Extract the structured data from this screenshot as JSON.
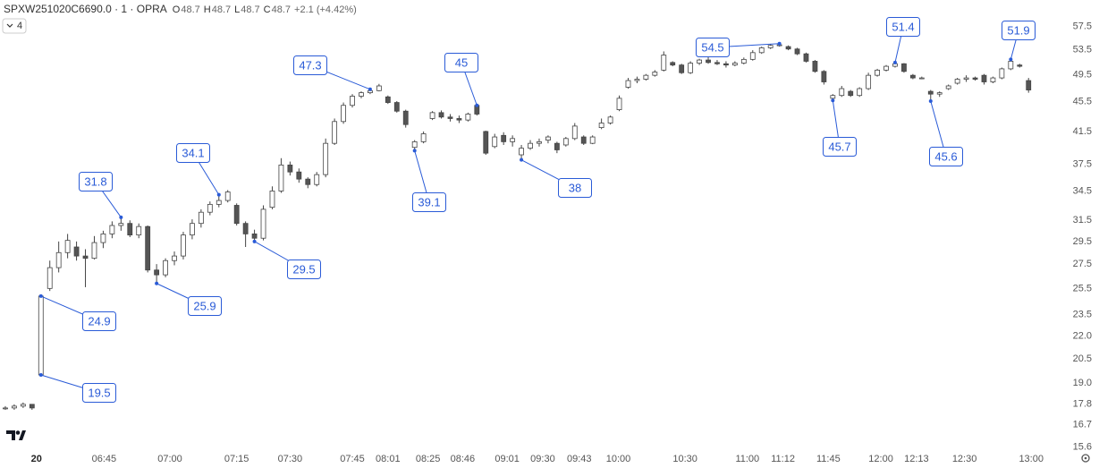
{
  "header": {
    "symbol": "SPXW251020C6690.0 · 1 · OPRA",
    "ohlc_labels": [
      "O",
      "H",
      "L",
      "C"
    ],
    "open": 48.7,
    "high": 48.7,
    "low": 48.7,
    "close": 48.7,
    "change": "+2.1 (+4.42%)",
    "interval_button": "4"
  },
  "chart_data": {
    "type": "candlestick",
    "log_scale": true,
    "up_color": "#ffffff",
    "down_color": "#555555",
    "wick_color": "#444444",
    "annotation_color": "#2a5bd7",
    "ylim": [
      15.4,
      62.4
    ],
    "yticks": [
      57.5,
      53.5,
      49.5,
      45.5,
      41.5,
      37.5,
      34.5,
      31.5,
      29.5,
      27.5,
      25.5,
      23.5,
      {
        "value": 22,
        "label": "22.0"
      },
      20.5,
      {
        "value": 19,
        "label": "19.0"
      },
      17.8,
      16.7,
      15.6
    ],
    "xlim": [
      -0.6,
      119.5
    ],
    "xticks": [
      {
        "value": 3.5,
        "label": "20"
      },
      {
        "value": 11.1,
        "label": "06:45"
      },
      {
        "value": 18.5,
        "label": "07:00"
      },
      {
        "value": 26,
        "label": "07:15"
      },
      {
        "value": 32,
        "label": "07:30"
      },
      {
        "value": 39,
        "label": "07:45"
      },
      {
        "value": 43,
        "label": "08:01"
      },
      {
        "value": 47.5,
        "label": "08:25"
      },
      {
        "value": 51.4,
        "label": "08:46"
      },
      {
        "value": 56.4,
        "label": "09:01"
      },
      {
        "value": 60.4,
        "label": "09:30"
      },
      {
        "value": 64.5,
        "label": "09:43"
      },
      {
        "value": 68.9,
        "label": "10:00"
      },
      {
        "value": 76.4,
        "label": "10:30"
      },
      {
        "value": 83.4,
        "label": "11:00"
      },
      {
        "value": 87.4,
        "label": "11:12"
      },
      {
        "value": 92.5,
        "label": "11:45"
      },
      {
        "value": 98.4,
        "label": "12:00"
      },
      {
        "value": 102.4,
        "label": "12:13"
      },
      {
        "value": 107.8,
        "label": "12:30"
      },
      {
        "value": 115.3,
        "label": "13:00"
      }
    ],
    "candles": [
      [
        17.6,
        17.7,
        17.5,
        17.6
      ],
      [
        17.6,
        17.8,
        17.5,
        17.7
      ],
      [
        17.7,
        17.9,
        17.6,
        17.8
      ],
      [
        17.8,
        17.8,
        17.5,
        17.6
      ],
      [
        19.5,
        24.9,
        19.5,
        24.9
      ],
      [
        25.5,
        27.8,
        25.3,
        27.2
      ],
      [
        27.2,
        29.5,
        26.8,
        28.5
      ],
      [
        28.5,
        30.2,
        28.0,
        29.6
      ],
      [
        29.0,
        29.5,
        27.8,
        28.2
      ],
      [
        28.2,
        28.8,
        25.6,
        28.0
      ],
      [
        28.0,
        30.0,
        27.9,
        29.4
      ],
      [
        29.4,
        30.5,
        28.9,
        30.2
      ],
      [
        30.2,
        31.4,
        29.8,
        31.0
      ],
      [
        31.0,
        31.8,
        30.5,
        31.2
      ],
      [
        31.2,
        31.5,
        29.9,
        30.1
      ],
      [
        30.1,
        31.2,
        29.8,
        30.9
      ],
      [
        30.9,
        31.0,
        26.8,
        27.0
      ],
      [
        27.0,
        27.5,
        25.9,
        26.6
      ],
      [
        26.6,
        28.0,
        26.4,
        27.8
      ],
      [
        27.8,
        28.6,
        27.4,
        28.2
      ],
      [
        28.2,
        30.4,
        27.9,
        30.1
      ],
      [
        30.1,
        31.6,
        29.7,
        31.2
      ],
      [
        31.2,
        32.6,
        30.8,
        32.3
      ],
      [
        32.3,
        33.4,
        32.0,
        33.1
      ],
      [
        33.1,
        34.1,
        32.8,
        33.5
      ],
      [
        33.5,
        34.6,
        33.3,
        34.4
      ],
      [
        33.0,
        33.2,
        31.0,
        31.2
      ],
      [
        31.2,
        31.4,
        29.0,
        30.2
      ],
      [
        30.2,
        30.6,
        29.5,
        29.8
      ],
      [
        29.8,
        33.0,
        29.6,
        32.6
      ],
      [
        32.8,
        35.0,
        32.6,
        34.5
      ],
      [
        34.5,
        38.2,
        34.3,
        37.4
      ],
      [
        37.4,
        37.8,
        36.2,
        36.6
      ],
      [
        36.6,
        37.0,
        35.4,
        35.8
      ],
      [
        35.8,
        36.0,
        34.8,
        35.2
      ],
      [
        35.2,
        36.6,
        35.0,
        36.3
      ],
      [
        36.3,
        40.6,
        36.0,
        40.0
      ],
      [
        40.0,
        43.2,
        39.8,
        42.8
      ],
      [
        42.8,
        45.4,
        42.5,
        45.0
      ],
      [
        45.0,
        46.6,
        44.7,
        46.3
      ],
      [
        46.3,
        47.0,
        46.0,
        46.8
      ],
      [
        46.8,
        47.3,
        46.6,
        47.1
      ],
      [
        47.1,
        48.1,
        47.0,
        47.8
      ],
      [
        46.2,
        46.4,
        45.2,
        45.4
      ],
      [
        45.4,
        45.6,
        44.0,
        44.2
      ],
      [
        44.2,
        44.4,
        42.0,
        42.4
      ],
      [
        39.5,
        40.4,
        39.1,
        40.2
      ],
      [
        40.2,
        41.5,
        40.0,
        41.2
      ],
      [
        43.2,
        44.2,
        43.0,
        44.0
      ],
      [
        44.0,
        44.3,
        43.2,
        43.4
      ],
      [
        43.4,
        43.8,
        42.8,
        43.2
      ],
      [
        43.2,
        43.6,
        42.6,
        43.0
      ],
      [
        43.0,
        44.0,
        42.8,
        43.8
      ],
      [
        45.0,
        45.0,
        43.6,
        43.8
      ],
      [
        41.5,
        41.6,
        38.6,
        38.8
      ],
      [
        39.6,
        41.2,
        39.4,
        40.8
      ],
      [
        41.0,
        41.4,
        39.8,
        40.2
      ],
      [
        40.2,
        41.0,
        39.6,
        40.6
      ],
      [
        38.6,
        39.8,
        38.0,
        39.4
      ],
      [
        39.4,
        40.4,
        39.2,
        40.0
      ],
      [
        40.0,
        40.6,
        39.6,
        40.2
      ],
      [
        40.4,
        41.0,
        40.0,
        40.8
      ],
      [
        40.0,
        40.2,
        38.8,
        39.2
      ],
      [
        39.8,
        40.8,
        39.6,
        40.6
      ],
      [
        40.6,
        42.6,
        40.4,
        42.2
      ],
      [
        40.8,
        41.0,
        39.8,
        40.0
      ],
      [
        40.0,
        41.0,
        39.9,
        40.8
      ],
      [
        42.0,
        43.2,
        41.8,
        42.6
      ],
      [
        42.6,
        43.6,
        42.4,
        43.4
      ],
      [
        44.4,
        46.4,
        44.2,
        46.0
      ],
      [
        47.6,
        49.0,
        47.4,
        48.6
      ],
      [
        48.6,
        49.2,
        48.2,
        48.8
      ],
      [
        48.8,
        49.6,
        48.6,
        49.4
      ],
      [
        49.4,
        50.2,
        49.2,
        49.9
      ],
      [
        50.2,
        53.2,
        50.0,
        52.6
      ],
      [
        51.4,
        51.6,
        50.8,
        51.0
      ],
      [
        51.0,
        51.2,
        49.6,
        49.8
      ],
      [
        49.8,
        51.6,
        49.6,
        51.3
      ],
      [
        51.3,
        52.0,
        51.0,
        51.8
      ],
      [
        51.8,
        52.4,
        51.2,
        51.4
      ],
      [
        51.4,
        51.8,
        51.0,
        51.2
      ],
      [
        51.2,
        51.6,
        50.6,
        51.0
      ],
      [
        51.0,
        51.6,
        50.8,
        51.3
      ],
      [
        51.3,
        52.2,
        51.1,
        51.9
      ],
      [
        51.9,
        53.4,
        51.7,
        53.0
      ],
      [
        53.0,
        54.0,
        52.8,
        53.8
      ],
      [
        53.8,
        54.4,
        53.6,
        54.2
      ],
      [
        54.2,
        54.5,
        54.0,
        54.3
      ],
      [
        54.0,
        54.2,
        53.4,
        53.6
      ],
      [
        53.6,
        53.8,
        52.6,
        52.8
      ],
      [
        52.8,
        53.0,
        51.4,
        51.6
      ],
      [
        51.6,
        51.8,
        49.8,
        50.0
      ],
      [
        50.0,
        50.2,
        48.0,
        48.4
      ],
      [
        46.0,
        46.6,
        45.7,
        46.4
      ],
      [
        46.4,
        47.8,
        46.2,
        47.4
      ],
      [
        47.0,
        47.2,
        46.2,
        46.4
      ],
      [
        46.4,
        47.6,
        46.2,
        47.4
      ],
      [
        47.4,
        49.8,
        47.2,
        49.4
      ],
      [
        49.4,
        50.4,
        49.2,
        50.2
      ],
      [
        50.2,
        51.0,
        50.0,
        50.8
      ],
      [
        50.8,
        51.4,
        50.6,
        51.2
      ],
      [
        51.2,
        51.3,
        49.8,
        50.0
      ],
      [
        49.4,
        49.6,
        48.8,
        49.0
      ],
      [
        49.0,
        49.2,
        48.8,
        49.0
      ],
      [
        47.0,
        47.2,
        45.6,
        46.6
      ],
      [
        46.6,
        47.0,
        46.2,
        46.8
      ],
      [
        47.4,
        48.0,
        47.2,
        47.8
      ],
      [
        48.2,
        49.0,
        48.0,
        48.8
      ],
      [
        48.8,
        49.4,
        48.4,
        49.0
      ],
      [
        49.0,
        49.2,
        48.6,
        48.8
      ],
      [
        49.4,
        49.6,
        48.0,
        48.4
      ],
      [
        48.4,
        49.2,
        48.2,
        49.0
      ],
      [
        49.0,
        50.6,
        48.8,
        50.4
      ],
      [
        50.4,
        51.9,
        50.2,
        51.6
      ],
      [
        51.0,
        51.2,
        50.6,
        50.8
      ],
      [
        48.6,
        49.0,
        46.8,
        47.2
      ]
    ],
    "annotations": [
      {
        "value": 19.5,
        "x": 4
      },
      {
        "value": 24.9,
        "x": 4
      },
      {
        "value": 31.8,
        "x": 13
      },
      {
        "value": 25.9,
        "x": 17
      },
      {
        "value": 34.1,
        "x": 24
      },
      {
        "value": 29.5,
        "x": 28
      },
      {
        "value": 47.3,
        "x": 41
      },
      {
        "value": 39.1,
        "x": 46
      },
      {
        "value": 45.0,
        "x": 53
      },
      {
        "value": 38.0,
        "x": 58
      },
      {
        "value": 54.5,
        "x": 87
      },
      {
        "value": 45.7,
        "x": 93
      },
      {
        "value": 51.4,
        "x": 100
      },
      {
        "value": 45.6,
        "x": 104
      },
      {
        "value": 51.9,
        "x": 113
      }
    ]
  }
}
